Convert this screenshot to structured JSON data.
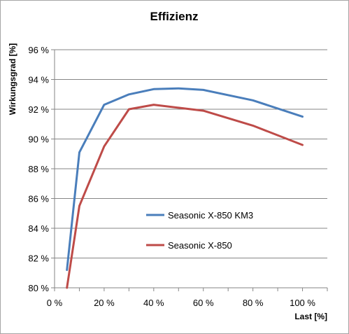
{
  "chart_data": {
    "type": "line",
    "title": "Effizienz",
    "xlabel": "Last [%]",
    "ylabel": "Wirkungsgrad [%]",
    "xlim": [
      0,
      110
    ],
    "ylim": [
      80,
      96
    ],
    "x_ticks": [
      0,
      20,
      40,
      60,
      80,
      100
    ],
    "x_tick_labels": [
      "0 %",
      "20 %",
      "40 %",
      "60 %",
      "80 %",
      "100 %"
    ],
    "y_ticks": [
      80,
      82,
      84,
      86,
      88,
      90,
      92,
      94,
      96
    ],
    "y_tick_labels": [
      "80 %",
      "82 %",
      "84 %",
      "86 %",
      "88 %",
      "90 %",
      "92 %",
      "94 %",
      "96 %"
    ],
    "grid": "horizontal",
    "legend": "inside-center",
    "series": [
      {
        "name": "Seasonic X-850 KM3",
        "color": "#4a7ebb",
        "x": [
          5,
          10,
          20,
          30,
          40,
          50,
          60,
          80,
          100
        ],
        "y": [
          81.2,
          89.1,
          92.3,
          93.0,
          93.35,
          93.4,
          93.3,
          92.6,
          91.5
        ]
      },
      {
        "name": "Seasonic X-850",
        "color": "#be4b48",
        "x": [
          5,
          10,
          20,
          30,
          40,
          50,
          60,
          80,
          100
        ],
        "y": [
          80.0,
          85.5,
          89.5,
          92.0,
          92.3,
          92.1,
          91.9,
          90.9,
          89.6
        ]
      }
    ]
  }
}
